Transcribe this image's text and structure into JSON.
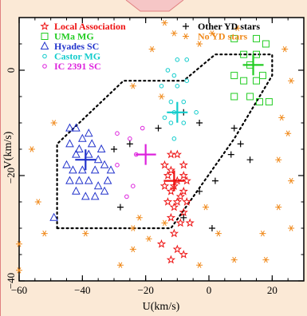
{
  "chart_data": {
    "type": "scatter",
    "xlabel": "U(km/s)",
    "ylabel": "V(km/s)",
    "xlim": [
      -60,
      30
    ],
    "ylim": [
      -40,
      10
    ],
    "xticks": [
      -60,
      -40,
      -20,
      0,
      20
    ],
    "yticks": [
      -40,
      -20,
      0
    ],
    "xtick_labels": [
      "−60",
      "−40",
      "−20",
      "0",
      "20"
    ],
    "ytick_labels": [
      "−40",
      "−20",
      "0"
    ],
    "legend_left": [
      {
        "label": "Local Association",
        "color": "#ee1111",
        "symbol": "star"
      },
      {
        "label": "UMa MG",
        "color": "#22cc22",
        "symbol": "square"
      },
      {
        "label": "Hyades SC",
        "color": "#2233cc",
        "symbol": "triangle"
      },
      {
        "label": "Castor MG",
        "color": "#11cccc",
        "symbol": "circle"
      },
      {
        "label": "IC 2391 SC",
        "color": "#dd22dd",
        "symbol": "circle"
      }
    ],
    "legend_right": [
      {
        "label": "Other YD stars",
        "color": "#000000",
        "symbol": "plus"
      },
      {
        "label": "No YD stars",
        "color": "#f08a1c",
        "symbol": "asterisk"
      }
    ],
    "boundary": [
      [
        -48,
        -30
      ],
      [
        -12,
        -30
      ],
      [
        8,
        -13
      ],
      [
        20,
        -1
      ],
      [
        20,
        3
      ],
      [
        2,
        3
      ],
      [
        -8,
        -2
      ],
      [
        -27,
        -2
      ],
      [
        -48,
        -14
      ],
      [
        -48,
        -30
      ]
    ],
    "series": [
      {
        "name": "Local Association",
        "symbol": "star",
        "color": "#ee1111",
        "points": [
          [
            -12,
            -16
          ],
          [
            -10,
            -16
          ],
          [
            -8,
            -18
          ],
          [
            -14,
            -18
          ],
          [
            -12,
            -19
          ],
          [
            -8,
            -20
          ],
          [
            -13,
            -20
          ],
          [
            -10,
            -21
          ],
          [
            -7,
            -21
          ],
          [
            -14,
            -22
          ],
          [
            -11,
            -22
          ],
          [
            -8,
            -23
          ],
          [
            -12,
            -23
          ],
          [
            -9,
            -24
          ],
          [
            -13,
            -25
          ],
          [
            -10,
            -25
          ],
          [
            -7,
            -25
          ],
          [
            -11,
            -26
          ],
          [
            -8,
            -27
          ],
          [
            -12,
            -28
          ],
          [
            -9,
            -29
          ],
          [
            -6,
            -29
          ],
          [
            -11,
            -31
          ],
          [
            -15,
            -33
          ],
          [
            -8,
            -35
          ],
          [
            -12,
            -36
          ],
          [
            -10,
            -34
          ]
        ]
      },
      {
        "name": "UMa MG",
        "symbol": "square",
        "color": "#22cc22",
        "points": [
          [
            8,
            6
          ],
          [
            15,
            6
          ],
          [
            18,
            5
          ],
          [
            11,
            3
          ],
          [
            15,
            3
          ],
          [
            13,
            1
          ],
          [
            17,
            -1
          ],
          [
            8,
            -1
          ],
          [
            11,
            -2
          ],
          [
            15,
            -2
          ],
          [
            8,
            -5
          ],
          [
            13,
            -5
          ],
          [
            19,
            -6
          ],
          [
            16,
            -6
          ]
        ]
      },
      {
        "name": "Hyades SC",
        "symbol": "triangle",
        "color": "#2233cc",
        "points": [
          [
            -44,
            -11
          ],
          [
            -42,
            -11
          ],
          [
            -38,
            -12
          ],
          [
            -40,
            -13
          ],
          [
            -44,
            -14
          ],
          [
            -41,
            -15
          ],
          [
            -37,
            -14
          ],
          [
            -34,
            -15
          ],
          [
            -42,
            -16
          ],
          [
            -38,
            -16
          ],
          [
            -35,
            -17
          ],
          [
            -45,
            -18
          ],
          [
            -43,
            -19
          ],
          [
            -40,
            -19
          ],
          [
            -36,
            -19
          ],
          [
            -33,
            -18
          ],
          [
            -31,
            -19
          ],
          [
            -44,
            -21
          ],
          [
            -41,
            -21
          ],
          [
            -38,
            -21
          ],
          [
            -35,
            -22
          ],
          [
            -32,
            -21
          ],
          [
            -42,
            -23
          ],
          [
            -39,
            -24
          ],
          [
            -36,
            -24
          ],
          [
            -33,
            -23
          ],
          [
            -49,
            -28
          ]
        ]
      },
      {
        "name": "Castor MG",
        "symbol": "circle",
        "color": "#11cccc",
        "points": [
          [
            -10,
            2
          ],
          [
            -7,
            2
          ],
          [
            -13,
            0
          ],
          [
            -11,
            -1
          ],
          [
            -7,
            -2
          ],
          [
            -10,
            -3
          ],
          [
            -15,
            -3
          ],
          [
            -12,
            -6
          ],
          [
            -8,
            -6
          ],
          [
            -11,
            -8
          ],
          [
            -14,
            -9
          ],
          [
            -12,
            -10
          ],
          [
            -8,
            -10
          ],
          [
            -4,
            -8
          ],
          [
            -11,
            -13
          ]
        ]
      },
      {
        "name": "IC 2391 SC",
        "symbol": "circle",
        "color": "#dd22dd",
        "points": [
          [
            -29,
            -18
          ],
          [
            -23,
            -16
          ],
          [
            -21,
            -11
          ],
          [
            -25,
            -13
          ],
          [
            -29,
            -12
          ],
          [
            -24,
            -22
          ],
          [
            -26,
            -24
          ]
        ]
      },
      {
        "name": "Other YD stars",
        "symbol": "plus",
        "color": "#000000",
        "points": [
          [
            -30,
            -15
          ],
          [
            -25,
            -14
          ],
          [
            -16,
            -11
          ],
          [
            -8,
            -8
          ],
          [
            -3,
            -10
          ],
          [
            8,
            -11
          ],
          [
            10,
            -14
          ],
          [
            7,
            -16
          ],
          [
            13,
            -17
          ],
          [
            2,
            -21
          ],
          [
            -3,
            -23
          ],
          [
            -28,
            -26
          ],
          [
            -8,
            -28
          ],
          [
            1,
            -30
          ]
        ]
      },
      {
        "name": "No YD stars",
        "symbol": "asterisk",
        "color": "#f08a1c",
        "points": [
          [
            -18,
            4
          ],
          [
            -14,
            9
          ],
          [
            -11,
            7
          ],
          [
            -3,
            5
          ],
          [
            1,
            7
          ],
          [
            9,
            8
          ],
          [
            -24,
            -3
          ],
          [
            -15,
            -5
          ],
          [
            24,
            4
          ],
          [
            26,
            -2
          ],
          [
            23,
            -9
          ],
          [
            25,
            -12
          ],
          [
            22,
            -17
          ],
          [
            26,
            -21
          ],
          [
            22,
            -26
          ],
          [
            26,
            -30
          ],
          [
            -56,
            -15
          ],
          [
            -54,
            -25
          ],
          [
            -52,
            -31
          ],
          [
            -49,
            -10
          ],
          [
            -39,
            -31
          ],
          [
            -24,
            -30
          ],
          [
            -22,
            -28
          ],
          [
            -19,
            -32
          ],
          [
            -14,
            -29
          ],
          [
            -24,
            -34
          ],
          [
            -28,
            -37
          ],
          [
            -3,
            -37
          ],
          [
            3,
            -31
          ],
          [
            8,
            -36
          ],
          [
            -1,
            -26
          ],
          [
            17,
            -31
          ],
          [
            18,
            -36
          ],
          [
            -60,
            -33
          ],
          [
            -60,
            -38
          ]
        ]
      }
    ],
    "means": [
      {
        "name": "Hyades SC",
        "color": "#2233cc",
        "u": -39,
        "v": -17
      },
      {
        "name": "IC 2391 SC",
        "color": "#dd22dd",
        "u": -20,
        "v": -16
      },
      {
        "name": "Castor MG",
        "color": "#11cccc",
        "u": -10,
        "v": -8
      },
      {
        "name": "Local Association",
        "color": "#ee1111",
        "u": -11,
        "v": -21
      },
      {
        "name": "UMa MG",
        "color": "#22cc22",
        "u": 14,
        "v": 1
      }
    ]
  }
}
